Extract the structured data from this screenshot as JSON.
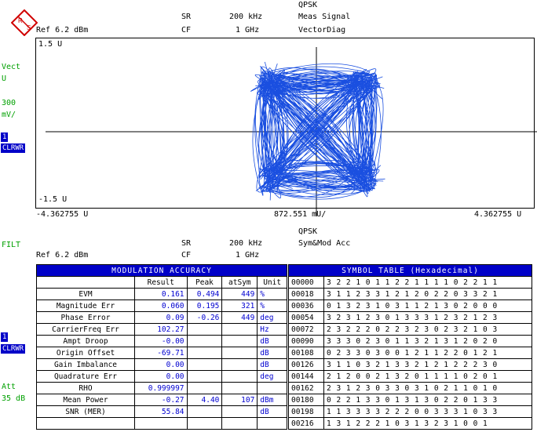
{
  "logo": {
    "text": "R&S"
  },
  "top": {
    "mode": "QPSK",
    "sr_label": "SR",
    "sr_value": "200 kHz",
    "meas_label": "Meas Signal",
    "cf_label": "CF",
    "cf_value": "1 GHz",
    "view": "VectorDiag",
    "ref": "Ref 6.2 dBm"
  },
  "left1": {
    "line1": "Vect",
    "line2": "U",
    "scale_value": "300",
    "scale_unit": "mV/",
    "trace_num": "1",
    "trace_mode": "CLRWR"
  },
  "plot": {
    "ymax": "1.5 U",
    "ymin": "-1.5 U",
    "xmin": "-4.362755 U",
    "xdiv": "872.551 mU/",
    "xmax": "4.362755 U"
  },
  "bottom": {
    "mode": "QPSK",
    "sr_label": "SR",
    "sr_value": "200 kHz",
    "view": "Sym&Mod Acc",
    "cf_label": "CF",
    "cf_value": "1 GHz",
    "ref": "Ref 6.2 dBm"
  },
  "left2": {
    "filt": "FILT",
    "trace_num": "1",
    "trace_mode": "CLRWR",
    "att_label": "Att",
    "att_value": "35 dB"
  },
  "mod_accuracy": {
    "title": "MODULATION ACCURACY",
    "headers": [
      "Result",
      "Peak",
      "atSym",
      "Unit"
    ],
    "rows": [
      {
        "label": "EVM",
        "result": "0.161",
        "peak": "0.494",
        "atsym": "449",
        "unit": "%"
      },
      {
        "label": "Magnitude Err",
        "result": "0.060",
        "peak": "0.195",
        "atsym": "321",
        "unit": "%"
      },
      {
        "label": "Phase Error",
        "result": "0.09",
        "peak": "-0.26",
        "atsym": "449",
        "unit": "deg"
      },
      {
        "label": "CarrierFreq Err",
        "result": "102.27",
        "peak": "",
        "atsym": "",
        "unit": "Hz"
      },
      {
        "label": "Ampt Droop",
        "result": "-0.00",
        "peak": "",
        "atsym": "",
        "unit": "dB"
      },
      {
        "label": "Origin Offset",
        "result": "-69.71",
        "peak": "",
        "atsym": "",
        "unit": "dB"
      },
      {
        "label": "Gain Imbalance",
        "result": "0.00",
        "peak": "",
        "atsym": "",
        "unit": "dB"
      },
      {
        "label": "Quadrature Err",
        "result": "0.00",
        "peak": "",
        "atsym": "",
        "unit": "deg"
      },
      {
        "label": "RHO",
        "result": "0.999997",
        "peak": "",
        "atsym": "",
        "unit": ""
      },
      {
        "label": "Mean Power",
        "result": "-0.27",
        "peak": "4.40",
        "atsym": "107",
        "unit": "dBm"
      },
      {
        "label": "SNR (MER)",
        "result": "55.84",
        "peak": "",
        "atsym": "",
        "unit": "dB"
      },
      {
        "label": "",
        "result": "",
        "peak": "",
        "atsym": "",
        "unit": ""
      }
    ]
  },
  "symbol_table": {
    "title": "SYMBOL TABLE (Hexadecimal)",
    "rows": [
      {
        "addr": "00000",
        "syms": "3 2 2 1 0 1 1 2 2 1 1 1 1 0 2 2 1 1"
      },
      {
        "addr": "00018",
        "syms": "3 1 1 2 3 3 1 2 1 2 0 2 2 0 3 3 2 1"
      },
      {
        "addr": "00036",
        "syms": "0 1 3 2 3 1 0 3 1 1 2 1 3 0 2 0 0 0"
      },
      {
        "addr": "00054",
        "syms": "3 2 3 1 2 3 0 1 3 3 3 1 2 3 2 1 2 3"
      },
      {
        "addr": "00072",
        "syms": "2 3 2 2 2 0 2 2 3 2 3 0 2 3 2 1 0 3"
      },
      {
        "addr": "00090",
        "syms": "3 3 3 0 2 3 0 1 1 3 2 1 3 1 2 0 2 0"
      },
      {
        "addr": "00108",
        "syms": "0 2 3 3 0 3 0 0 1 2 1 1 2 2 0 1 2 1"
      },
      {
        "addr": "00126",
        "syms": "3 1 1 0 3 2 1 3 3 2 1 2 1 2 2 2 3 0"
      },
      {
        "addr": "00144",
        "syms": "2 1 2 0 0 2 1 3 2 0 1 1 1 1 0 2 0 1"
      },
      {
        "addr": "00162",
        "syms": "2 3 1 2 3 0 3 3 0 3 1 0 2 1 1 0 1 0"
      },
      {
        "addr": "00180",
        "syms": "0 2 2 1 3 3 0 1 3 1 3 0 2 2 0 1 3 3"
      },
      {
        "addr": "00198",
        "syms": "1 1 3 3 3 3 2 2 2 0 0 3 3 3 1 0 3 3"
      },
      {
        "addr": "00216",
        "syms": "1 3 1 2 2 2 1 0 3 1 3 2 3 1 0 0 1"
      }
    ]
  }
}
